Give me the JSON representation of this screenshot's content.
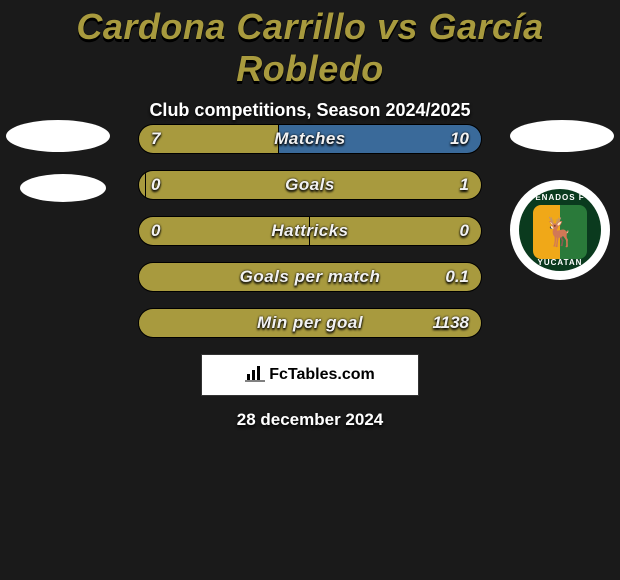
{
  "title": "Cardona Carrillo vs García Robledo",
  "subtitle": "Club competitions, Season 2024/2025",
  "date": "28 december 2024",
  "brand": "FcTables.com",
  "colors": {
    "accent": "#a89a3e",
    "bg": "#1a1a1a",
    "stat_label_text": "#f2f2f2"
  },
  "left_club": {
    "name": "Cardona Carrillo"
  },
  "right_club": {
    "name": "García Robledo",
    "badge_top_text": "ENADOS F",
    "badge_bottom_text": "YUCATAN",
    "badge_colors": {
      "outer_ring": "#ffffff",
      "inner_bg": "#0a3a1e",
      "shield_left": "#f0a818",
      "shield_right": "#2a7a3a"
    }
  },
  "stats": [
    {
      "label": "Matches",
      "left_value": "7",
      "right_value": "10",
      "left_width_pct": 41,
      "right_width_pct": 59,
      "left_color": "#a89a3e",
      "right_color": "#3a6a9a"
    },
    {
      "label": "Goals",
      "left_value": "0",
      "right_value": "1",
      "left_width_pct": 2,
      "right_width_pct": 98,
      "left_color": "#a89a3e",
      "right_color": "#a89a3e"
    },
    {
      "label": "Hattricks",
      "left_value": "0",
      "right_value": "0",
      "left_width_pct": 50,
      "right_width_pct": 50,
      "left_color": "#a89a3e",
      "right_color": "#a89a3e"
    },
    {
      "label": "Goals per match",
      "left_value": "",
      "right_value": "0.1",
      "left_width_pct": 0,
      "right_width_pct": 100,
      "left_color": "#a89a3e",
      "right_color": "#a89a3e"
    },
    {
      "label": "Min per goal",
      "left_value": "",
      "right_value": "1138",
      "left_width_pct": 0,
      "right_width_pct": 100,
      "left_color": "#a89a3e",
      "right_color": "#a89a3e"
    }
  ]
}
